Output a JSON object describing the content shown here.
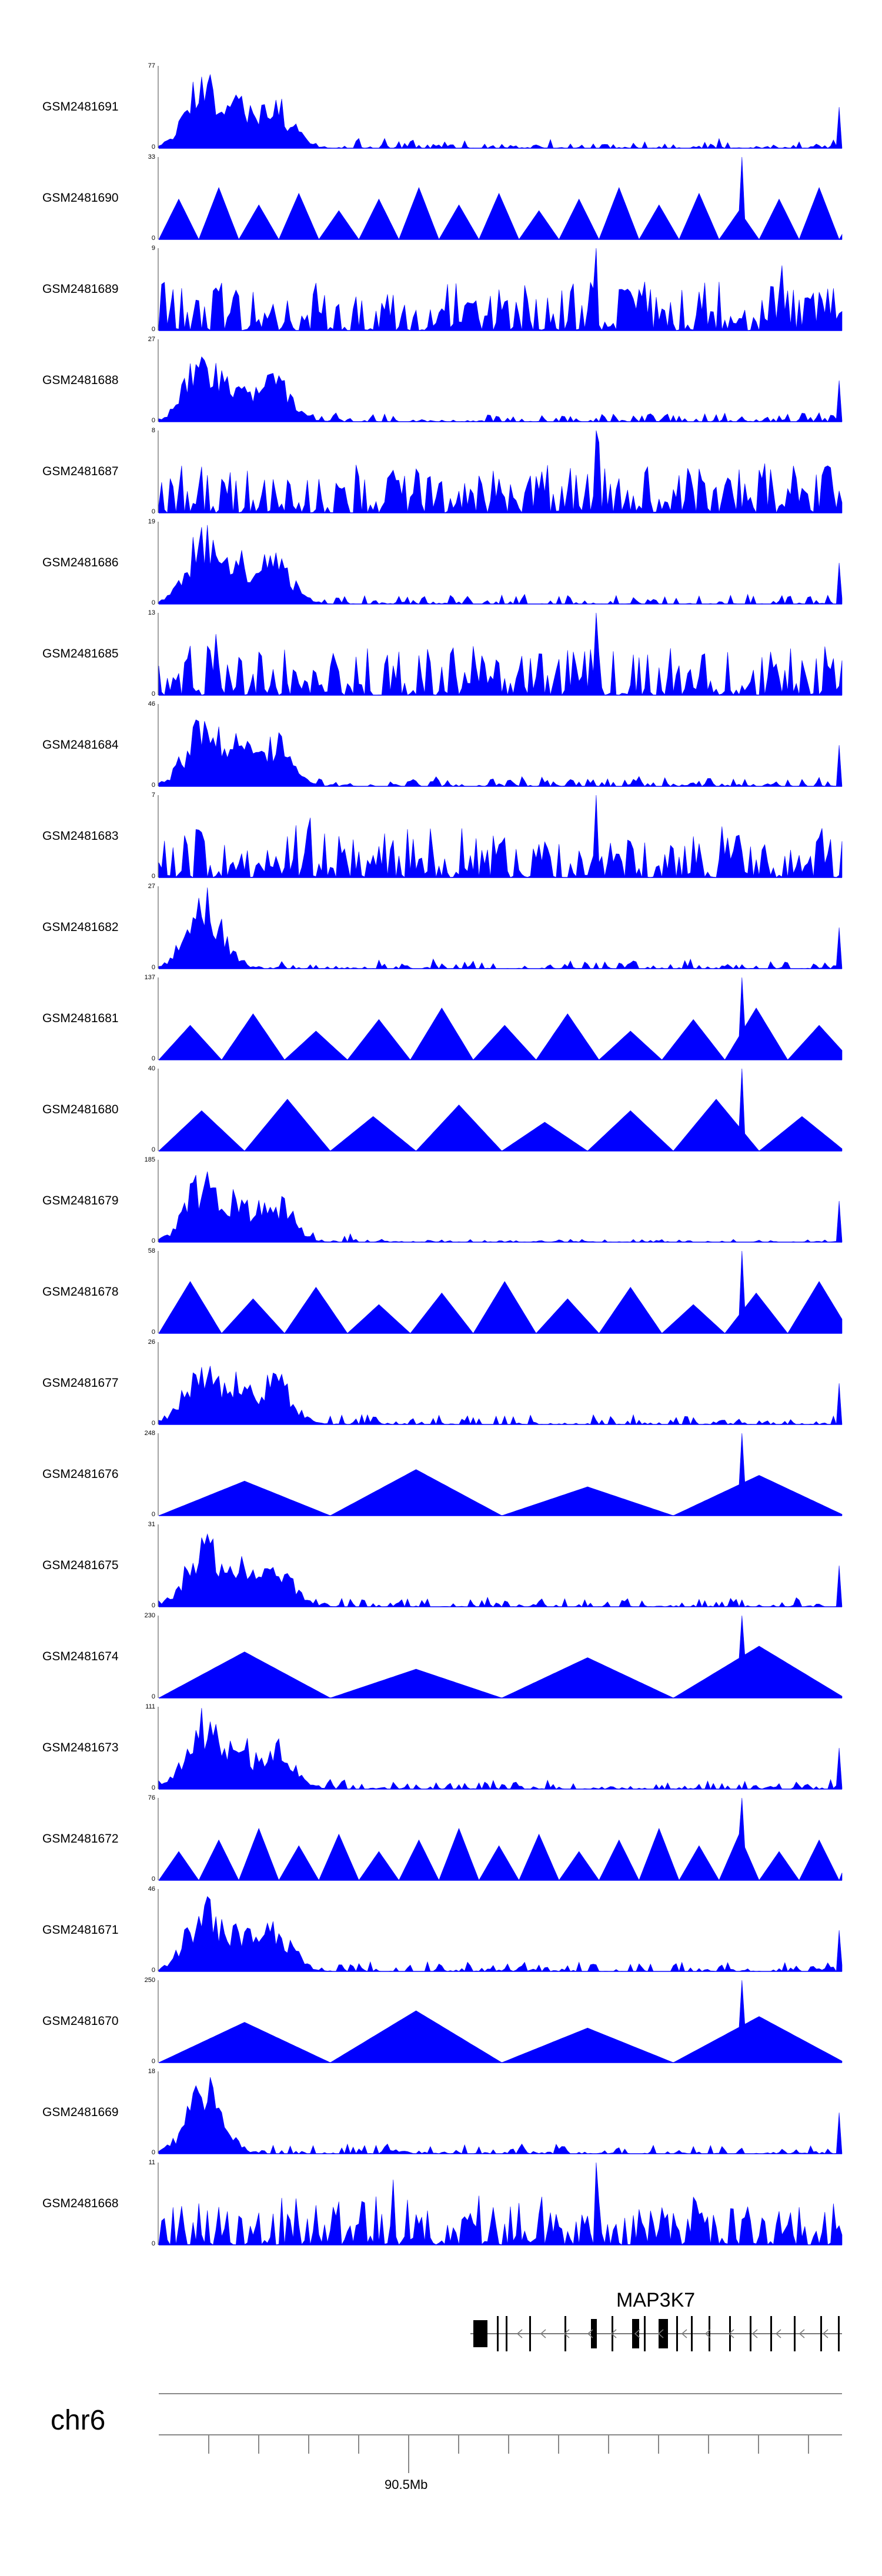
{
  "chart_data": {
    "type": "area",
    "title": "",
    "color": "#0000ff",
    "tracks": [
      {
        "name": "GSM2481691",
        "max": 77,
        "min": 0,
        "profile": "peaks-three"
      },
      {
        "name": "GSM2481690",
        "max": 33,
        "min": 0,
        "profile": "triangles-dense"
      },
      {
        "name": "GSM2481689",
        "max": 9,
        "min": 0,
        "profile": "noise"
      },
      {
        "name": "GSM2481688",
        "max": 27,
        "min": 0,
        "profile": "peaks-three"
      },
      {
        "name": "GSM2481687",
        "max": 8,
        "min": 0,
        "profile": "noise"
      },
      {
        "name": "GSM2481686",
        "max": 19,
        "min": 0,
        "profile": "peaks-three"
      },
      {
        "name": "GSM2481685",
        "max": 13,
        "min": 0,
        "profile": "noise"
      },
      {
        "name": "GSM2481684",
        "max": 46,
        "min": 0,
        "profile": "peaks-three"
      },
      {
        "name": "GSM2481683",
        "max": 7,
        "min": 0,
        "profile": "noise"
      },
      {
        "name": "GSM2481682",
        "max": 27,
        "min": 0,
        "profile": "peaks-one"
      },
      {
        "name": "GSM2481681",
        "max": 137,
        "min": 0,
        "profile": "triangles-sparse"
      },
      {
        "name": "GSM2481680",
        "max": 40,
        "min": 0,
        "profile": "triangles-wide"
      },
      {
        "name": "GSM2481679",
        "max": 185,
        "min": 0,
        "profile": "peaks-flat"
      },
      {
        "name": "GSM2481678",
        "max": 58,
        "min": 0,
        "profile": "triangles-sparse"
      },
      {
        "name": "GSM2481677",
        "max": 26,
        "min": 0,
        "profile": "peaks-three"
      },
      {
        "name": "GSM2481676",
        "max": 248,
        "min": 0,
        "profile": "triangles-big"
      },
      {
        "name": "GSM2481675",
        "max": 31,
        "min": 0,
        "profile": "peaks-three"
      },
      {
        "name": "GSM2481674",
        "max": 230,
        "min": 0,
        "profile": "triangles-big"
      },
      {
        "name": "GSM2481673",
        "max": 111,
        "min": 0,
        "profile": "peaks-three"
      },
      {
        "name": "GSM2481672",
        "max": 76,
        "min": 0,
        "profile": "triangles-dense"
      },
      {
        "name": "GSM2481671",
        "max": 46,
        "min": 0,
        "profile": "peaks-three"
      },
      {
        "name": "GSM2481670",
        "max": 250,
        "min": 0,
        "profile": "triangles-big"
      },
      {
        "name": "GSM2481669",
        "max": 18,
        "min": 0,
        "profile": "peaks-one"
      },
      {
        "name": "GSM2481668",
        "max": 11,
        "min": 0,
        "profile": "noise"
      }
    ],
    "gene": {
      "name": "MAP3K7",
      "strand": "-"
    },
    "chromosome": "chr6",
    "xaxis": {
      "tick_label": "90.5Mb"
    }
  }
}
